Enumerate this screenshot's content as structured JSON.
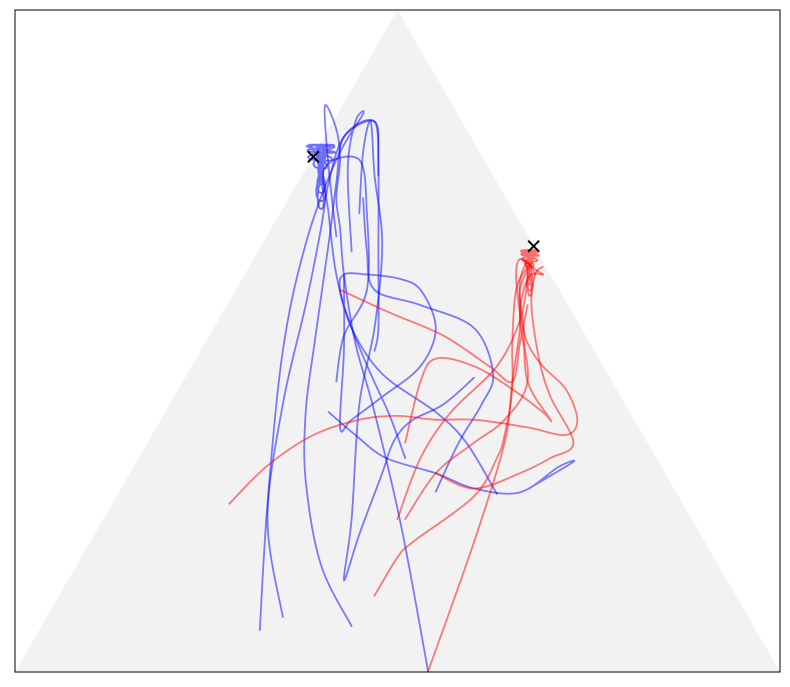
{
  "chart_data": {
    "type": "line",
    "title": "",
    "xlabel": "",
    "ylabel": "",
    "grid": false,
    "legend": "none",
    "axes_ticks": false,
    "xlim": [
      0,
      1
    ],
    "ylim": [
      0,
      0.866
    ],
    "simplex": {
      "vertices": [
        [
          0,
          0
        ],
        [
          1,
          0
        ],
        [
          0.5,
          0.866
        ]
      ],
      "fill_color": "#f2f2f2"
    },
    "series": [
      {
        "color": "#0000ff",
        "opacity": 0.5,
        "trajectories": [
          [
            [
              0.54,
              0.001
            ],
            [
              0.505,
              0.19
            ],
            [
              0.47,
              0.34
            ],
            [
              0.445,
              0.43
            ],
            [
              0.43,
              0.52
            ],
            [
              0.425,
              0.58
            ],
            [
              0.42,
              0.62
            ],
            [
              0.425,
              0.67
            ],
            [
              0.42,
              0.71
            ],
            [
              0.405,
              0.74
            ],
            [
              0.41,
              0.66
            ],
            [
              0.42,
              0.57
            ]
          ],
          [
            [
              0.32,
              0.055
            ],
            [
              0.33,
              0.22
            ],
            [
              0.35,
              0.42
            ],
            [
              0.38,
              0.56
            ],
            [
              0.42,
              0.67
            ],
            [
              0.455,
              0.73
            ],
            [
              0.445,
              0.72
            ],
            [
              0.435,
              0.66
            ],
            [
              0.44,
              0.55
            ]
          ],
          [
            [
              0.41,
              0.34
            ],
            [
              0.445,
              0.31
            ],
            [
              0.485,
              0.28
            ],
            [
              0.55,
              0.26
            ],
            [
              0.6,
              0.24
            ],
            [
              0.66,
              0.235
            ],
            [
              0.71,
              0.268
            ],
            [
              0.73,
              0.275
            ],
            [
              0.68,
              0.245
            ]
          ],
          [
            [
              0.55,
              0.236
            ],
            [
              0.58,
              0.3
            ],
            [
              0.61,
              0.35
            ],
            [
              0.625,
              0.39
            ],
            [
              0.6,
              0.45
            ],
            [
              0.53,
              0.48
            ],
            [
              0.47,
              0.5
            ],
            [
              0.46,
              0.55
            ],
            [
              0.455,
              0.62
            ]
          ],
          [
            [
              0.63,
              0.233
            ],
            [
              0.59,
              0.3
            ],
            [
              0.55,
              0.34
            ],
            [
              0.48,
              0.39
            ],
            [
              0.44,
              0.45
            ],
            [
              0.42,
              0.52
            ],
            [
              0.41,
              0.6
            ],
            [
              0.405,
              0.66
            ],
            [
              0.45,
              0.67
            ],
            [
              0.46,
              0.6
            ],
            [
              0.46,
              0.5
            ],
            [
              0.43,
              0.44
            ],
            [
              0.42,
              0.38
            ]
          ],
          [
            [
              0.6,
              0.385
            ],
            [
              0.56,
              0.35
            ],
            [
              0.52,
              0.33
            ],
            [
              0.5,
              0.31
            ],
            [
              0.49,
              0.29
            ],
            [
              0.48,
              0.26
            ],
            [
              0.45,
              0.18
            ],
            [
              0.43,
              0.12
            ],
            [
              0.44,
              0.2
            ],
            [
              0.45,
              0.35
            ],
            [
              0.47,
              0.45
            ],
            [
              0.48,
              0.56
            ],
            [
              0.47,
              0.65
            ],
            [
              0.465,
              0.72
            ],
            [
              0.455,
              0.68
            ],
            [
              0.45,
              0.6
            ]
          ],
          [
            [
              0.44,
              0.06
            ],
            [
              0.4,
              0.14
            ],
            [
              0.38,
              0.25
            ],
            [
              0.38,
              0.34
            ],
            [
              0.39,
              0.42
            ],
            [
              0.41,
              0.56
            ],
            [
              0.42,
              0.64
            ],
            [
              0.43,
              0.7
            ],
            [
              0.47,
              0.72
            ],
            [
              0.475,
              0.65
            ]
          ],
          [
            [
              0.35,
              0.072
            ],
            [
              0.33,
              0.2
            ],
            [
              0.35,
              0.35
            ],
            [
              0.38,
              0.48
            ],
            [
              0.4,
              0.58
            ],
            [
              0.41,
              0.64
            ],
            [
              0.43,
              0.7
            ],
            [
              0.47,
              0.72
            ],
            [
              0.475,
              0.67
            ],
            [
              0.475,
              0.55
            ],
            [
              0.475,
              0.45
            ],
            [
              0.47,
              0.42
            ]
          ],
          [
            [
              0.51,
              0.28
            ],
            [
              0.49,
              0.335
            ],
            [
              0.465,
              0.39
            ],
            [
              0.44,
              0.45
            ],
            [
              0.425,
              0.5
            ],
            [
              0.43,
              0.52
            ],
            [
              0.46,
              0.52
            ],
            [
              0.5,
              0.515
            ],
            [
              0.53,
              0.5
            ],
            [
              0.55,
              0.45
            ],
            [
              0.53,
              0.4
            ],
            [
              0.48,
              0.36
            ],
            [
              0.44,
              0.33
            ],
            [
              0.425,
              0.32
            ],
            [
              0.43,
              0.42
            ],
            [
              0.43,
              0.52
            ]
          ]
        ]
      },
      {
        "color": "#ff0000",
        "opacity": 0.5,
        "trajectories": [
          [
            [
              0.28,
              0.22
            ],
            [
              0.33,
              0.27
            ],
            [
              0.39,
              0.31
            ],
            [
              0.45,
              0.33
            ],
            [
              0.5,
              0.335
            ],
            [
              0.55,
              0.33
            ],
            [
              0.6,
              0.33
            ],
            [
              0.67,
              0.32
            ],
            [
              0.72,
              0.31
            ],
            [
              0.735,
              0.33
            ],
            [
              0.72,
              0.37
            ],
            [
              0.69,
              0.4
            ],
            [
              0.67,
              0.43
            ],
            [
              0.66,
              0.47
            ],
            [
              0.655,
              0.52
            ],
            [
              0.66,
              0.54
            ],
            [
              0.675,
              0.53
            ],
            [
              0.69,
              0.52
            ]
          ],
          [
            [
              0.54,
              0.001
            ],
            [
              0.6,
              0.17
            ],
            [
              0.64,
              0.3
            ],
            [
              0.65,
              0.38
            ],
            [
              0.66,
              0.45
            ],
            [
              0.66,
              0.51
            ],
            [
              0.67,
              0.535
            ],
            [
              0.68,
              0.52
            ]
          ],
          [
            [
              0.51,
              0.2
            ],
            [
              0.55,
              0.26
            ],
            [
              0.6,
              0.3
            ],
            [
              0.64,
              0.33
            ],
            [
              0.67,
              0.38
            ],
            [
              0.66,
              0.46
            ],
            [
              0.665,
              0.5
            ],
            [
              0.675,
              0.52
            ],
            [
              0.69,
              0.52
            ]
          ],
          [
            [
              0.47,
              0.1
            ],
            [
              0.5,
              0.15
            ],
            [
              0.52,
              0.17
            ],
            [
              0.6,
              0.23
            ],
            [
              0.63,
              0.28
            ],
            [
              0.64,
              0.31
            ],
            [
              0.65,
              0.37
            ],
            [
              0.65,
              0.43
            ],
            [
              0.655,
              0.5
            ],
            [
              0.67,
              0.53
            ]
          ],
          [
            [
              0.425,
              0.5
            ],
            [
              0.49,
              0.47
            ],
            [
              0.56,
              0.44
            ],
            [
              0.62,
              0.4
            ],
            [
              0.65,
              0.38
            ],
            [
              0.66,
              0.43
            ],
            [
              0.67,
              0.48
            ]
          ],
          [
            [
              0.5,
              0.2
            ],
            [
              0.53,
              0.28
            ],
            [
              0.57,
              0.34
            ],
            [
              0.63,
              0.4
            ],
            [
              0.66,
              0.46
            ],
            [
              0.67,
              0.52
            ],
            [
              0.665,
              0.54
            ],
            [
              0.675,
              0.53
            ]
          ],
          [
            [
              0.55,
              0.26
            ],
            [
              0.6,
              0.24
            ],
            [
              0.66,
              0.26
            ],
            [
              0.7,
              0.28
            ],
            [
              0.73,
              0.3
            ],
            [
              0.7,
              0.36
            ],
            [
              0.685,
              0.41
            ],
            [
              0.675,
              0.48
            ],
            [
              0.68,
              0.52
            ],
            [
              0.69,
              0.53
            ]
          ],
          [
            [
              0.51,
              0.3
            ],
            [
              0.53,
              0.38
            ],
            [
              0.55,
              0.41
            ],
            [
              0.6,
              0.4
            ],
            [
              0.65,
              0.37
            ],
            [
              0.69,
              0.34
            ],
            [
              0.7,
              0.33
            ],
            [
              0.67,
              0.38
            ],
            [
              0.665,
              0.45
            ],
            [
              0.66,
              0.5
            ],
            [
              0.675,
              0.535
            ]
          ]
        ]
      }
    ],
    "markers": [
      {
        "marker": "x",
        "color": "#000000",
        "x": 0.39,
        "y": 0.674
      },
      {
        "marker": "x",
        "color": "#000000",
        "x": 0.678,
        "y": 0.557
      }
    ],
    "clusters": [
      {
        "color": "#0000ff",
        "x": 0.4,
        "y": 0.645,
        "spread_x": 0.022,
        "spread_y": 0.045
      },
      {
        "color": "#ff0000",
        "x": 0.673,
        "y": 0.52,
        "spread_x": 0.014,
        "spread_y": 0.032
      }
    ]
  }
}
